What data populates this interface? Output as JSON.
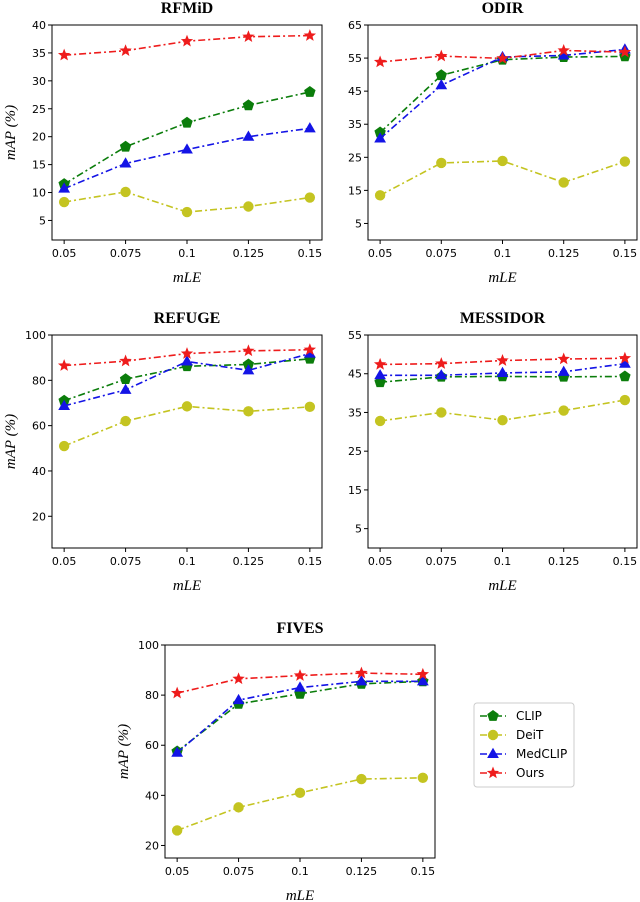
{
  "figure": {
    "xlabel": "mLE",
    "ylabel": "mAP (%)"
  },
  "legend": [
    {
      "name": "CLIP",
      "color": "#0b7d0b",
      "marker": "pentagon-icon"
    },
    {
      "name": "DeiT",
      "color": "#c4c421",
      "marker": "circle-icon"
    },
    {
      "name": "MedCLIP",
      "color": "#1414e6",
      "marker": "triangle-icon"
    },
    {
      "name": "Ours",
      "color": "#ee1c1c",
      "marker": "star-icon"
    }
  ],
  "chart_data": [
    {
      "type": "line",
      "title": "RFMiD",
      "xlabel": "mLE",
      "ylabel": "mAP (%)",
      "categories": [
        "0.05",
        "0.075",
        "0.1",
        "0.125",
        "0.15"
      ],
      "yticks": [
        5,
        10,
        15,
        20,
        25,
        30,
        35,
        40
      ],
      "ylim": [
        1.5,
        40
      ],
      "series": [
        {
          "name": "CLIP",
          "values": [
            11.5,
            18.2,
            22.5,
            25.6,
            28.0
          ]
        },
        {
          "name": "DeiT",
          "values": [
            8.3,
            10.1,
            6.5,
            7.5,
            9.1
          ]
        },
        {
          "name": "MedCLIP",
          "values": [
            10.7,
            15.2,
            17.7,
            20.0,
            21.5
          ]
        },
        {
          "name": "Ours",
          "values": [
            34.6,
            35.4,
            37.1,
            37.9,
            38.1
          ]
        }
      ]
    },
    {
      "type": "line",
      "title": "ODIR",
      "xlabel": "mLE",
      "ylabel": "",
      "categories": [
        "0.05",
        "0.075",
        "0.1",
        "0.125",
        "0.15"
      ],
      "yticks": [
        5,
        15,
        25,
        35,
        45,
        55,
        65
      ],
      "ylim": [
        0,
        65
      ],
      "series": [
        {
          "name": "CLIP",
          "values": [
            32.5,
            49.8,
            54.5,
            55.3,
            55.5
          ]
        },
        {
          "name": "DeiT",
          "values": [
            13.5,
            23.3,
            23.9,
            17.4,
            23.7
          ]
        },
        {
          "name": "MedCLIP",
          "values": [
            30.7,
            46.8,
            55.3,
            55.8,
            57.6
          ]
        },
        {
          "name": "Ours",
          "values": [
            53.8,
            55.6,
            54.9,
            57.3,
            56.8
          ]
        }
      ]
    },
    {
      "type": "line",
      "title": "REFUGE",
      "xlabel": "mLE",
      "ylabel": "mAP (%)",
      "categories": [
        "0.05",
        "0.075",
        "0.1",
        "0.125",
        "0.15"
      ],
      "yticks": [
        20,
        40,
        60,
        80,
        100
      ],
      "ylim": [
        6,
        100
      ],
      "series": [
        {
          "name": "CLIP",
          "values": [
            71.0,
            80.5,
            86.2,
            87.0,
            89.5
          ]
        },
        {
          "name": "DeiT",
          "values": [
            51.0,
            62.0,
            68.5,
            66.3,
            68.3
          ]
        },
        {
          "name": "MedCLIP",
          "values": [
            68.7,
            75.8,
            88.3,
            84.4,
            91.8
          ]
        },
        {
          "name": "Ours",
          "values": [
            86.5,
            88.5,
            91.8,
            93.0,
            93.5
          ]
        }
      ]
    },
    {
      "type": "line",
      "title": "MESSIDOR",
      "xlabel": "mLE",
      "ylabel": "",
      "categories": [
        "0.05",
        "0.075",
        "0.1",
        "0.125",
        "0.15"
      ],
      "yticks": [
        5,
        15,
        25,
        35,
        45,
        55
      ],
      "ylim": [
        0,
        55
      ],
      "series": [
        {
          "name": "CLIP",
          "values": [
            42.8,
            44.2,
            44.3,
            44.2,
            44.3
          ]
        },
        {
          "name": "DeiT",
          "values": [
            32.8,
            35.0,
            33.0,
            35.5,
            38.2
          ]
        },
        {
          "name": "MedCLIP",
          "values": [
            44.6,
            44.6,
            45.2,
            45.5,
            47.6
          ]
        },
        {
          "name": "Ours",
          "values": [
            47.4,
            47.6,
            48.4,
            48.8,
            49.0
          ]
        }
      ]
    },
    {
      "type": "line",
      "title": "FIVES",
      "xlabel": "mLE",
      "ylabel": "mAP (%)",
      "categories": [
        "0.05",
        "0.075",
        "0.1",
        "0.125",
        "0.15"
      ],
      "yticks": [
        20,
        40,
        60,
        80,
        100
      ],
      "ylim": [
        15,
        100
      ],
      "series": [
        {
          "name": "CLIP",
          "values": [
            57.5,
            76.5,
            80.5,
            84.5,
            85.5
          ]
        },
        {
          "name": "DeiT",
          "values": [
            26.0,
            35.2,
            41.0,
            46.5,
            47.0
          ]
        },
        {
          "name": "MedCLIP",
          "values": [
            57.0,
            78.0,
            83.0,
            85.5,
            85.5
          ]
        },
        {
          "name": "Ours",
          "values": [
            80.8,
            86.5,
            87.8,
            88.8,
            88.3
          ]
        }
      ]
    }
  ]
}
